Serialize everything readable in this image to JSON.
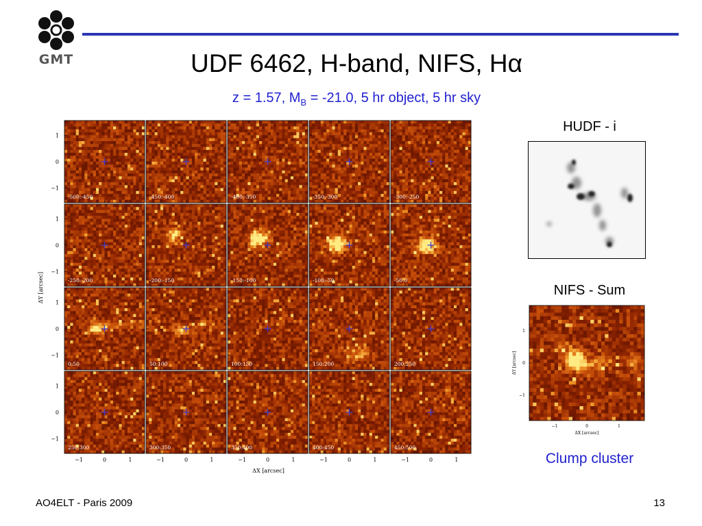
{
  "slide": {
    "logo_text": "GMT",
    "title": "UDF 6462, H-band, NIFS, Hα",
    "subtitle_prefix": "z = 1.57, M",
    "subtitle_sub": "B",
    "subtitle_suffix": " = -21.0,  5 hr object, 5 hr sky",
    "footer_left": "AO4ELT - Paris 2009",
    "page_number": "13"
  },
  "grid": {
    "panel_labels": [
      [
        "-500:-450",
        "-450:-400",
        "-400:-350",
        "-350:-300",
        "-300:-250"
      ],
      [
        "-250:-200",
        "-200:-150",
        "-150:-100",
        "-100:-50",
        "-50:0"
      ],
      [
        "0:50",
        "50:100",
        "100:150",
        "150:200",
        "200:250"
      ],
      [
        "250:300",
        "300:350",
        "350:400",
        "400:450",
        "450:500"
      ]
    ],
    "y_ticks": [
      "1",
      "0",
      "−1"
    ],
    "x_ticks": [
      "−1",
      "0",
      "1"
    ],
    "y_axis_label": "ΔY [arcsec]",
    "x_axis_label": "ΔX [arcsec]"
  },
  "hudf": {
    "label": "HUDF - i"
  },
  "nifs": {
    "label": "NIFS - Sum",
    "y_ticks": [
      "1",
      "0",
      "−1"
    ],
    "x_ticks": [
      "−1",
      "0",
      "1"
    ],
    "y_axis_label": "ΔY [arcsec]",
    "x_axis_label": "ΔX [arcsec]"
  },
  "annotation": {
    "clump_label": "Clump cluster"
  },
  "colors": {
    "accent_blue": "#1f1fd0",
    "rule_blue": "#2b36b4",
    "map_dark": "#5a1200",
    "map_bright": "#ffe06a"
  }
}
